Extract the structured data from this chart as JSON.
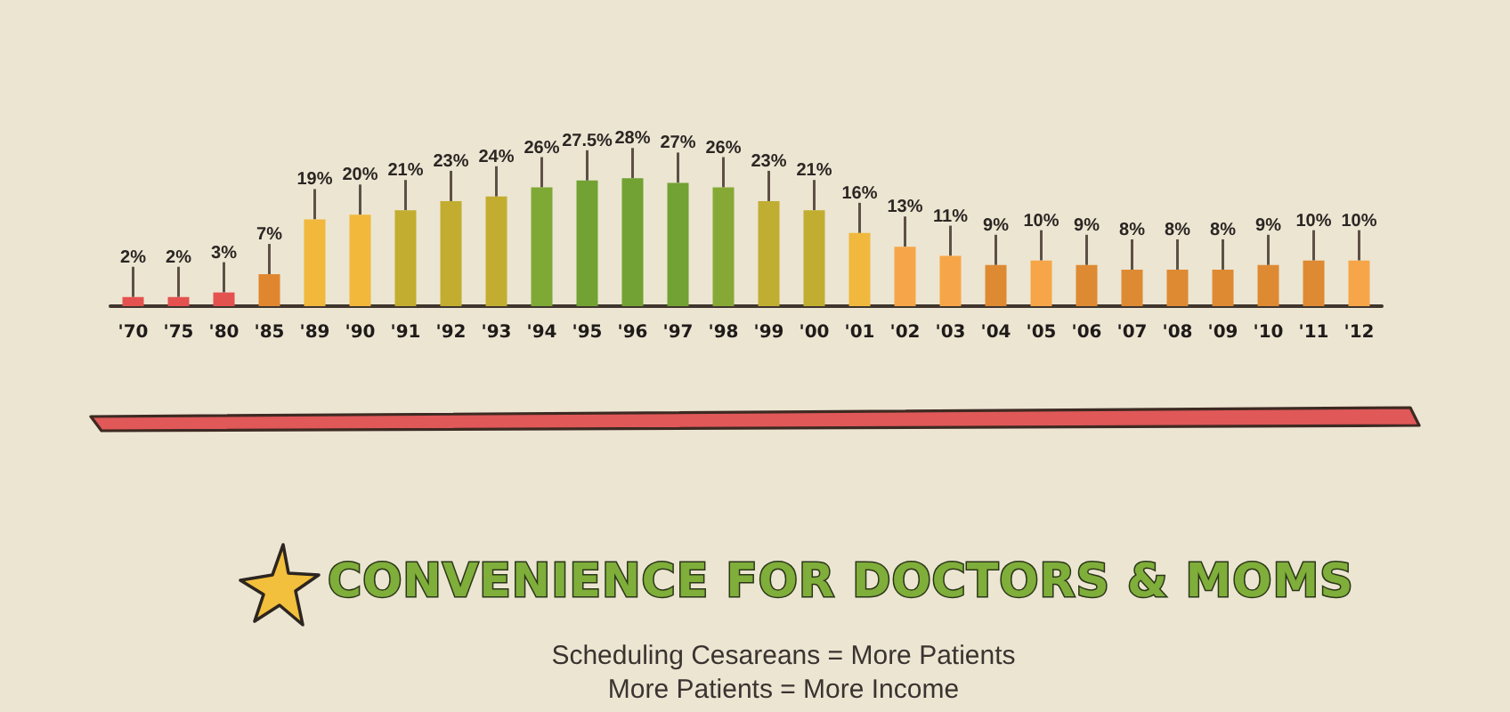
{
  "chart_data": {
    "type": "bar",
    "categories": [
      "'70",
      "'75",
      "'80",
      "'85",
      "'89",
      "'90",
      "'91",
      "'92",
      "'93",
      "'94",
      "'95",
      "'96",
      "'97",
      "'98",
      "'99",
      "'00",
      "'01",
      "'02",
      "'03",
      "'04",
      "'05",
      "'06",
      "'07",
      "'08",
      "'09",
      "'10",
      "'11",
      "'12"
    ],
    "values": [
      2,
      2,
      3,
      7,
      19,
      20,
      21,
      23,
      24,
      26,
      27.5,
      28,
      27,
      26,
      23,
      21,
      16,
      13,
      11,
      9,
      10,
      9,
      8,
      8,
      8,
      9,
      10,
      10
    ],
    "value_labels": [
      "2%",
      "2%",
      "3%",
      "7%",
      "19%",
      "20%",
      "21%",
      "23%",
      "24%",
      "26%",
      "27.5%",
      "28%",
      "27%",
      "26%",
      "23%",
      "21%",
      "16%",
      "13%",
      "11%",
      "9%",
      "10%",
      "9%",
      "8%",
      "8%",
      "8%",
      "9%",
      "10%",
      "10%"
    ],
    "colors": [
      "#e4524f",
      "#e4524f",
      "#e4524f",
      "#e0862e",
      "#f1b83b",
      "#f1b83b",
      "#c2ad30",
      "#c2ad30",
      "#c2ad30",
      "#7fa935",
      "#71a233",
      "#71a233",
      "#71a233",
      "#86a935",
      "#bfae31",
      "#c1ae30",
      "#f0b83d",
      "#f6a648",
      "#f6a648",
      "#de8a32",
      "#f6a648",
      "#de8a32",
      "#de8a32",
      "#de8a32",
      "#de8a32",
      "#de8a32",
      "#de8a32",
      "#f6a648"
    ],
    "tick_labels": "x",
    "title": "CONVENIENCE FOR DOCTORS & MOMS",
    "annotations": [
      "Scheduling Cesareans = More Patients",
      "More Patients = More Income"
    ]
  }
}
